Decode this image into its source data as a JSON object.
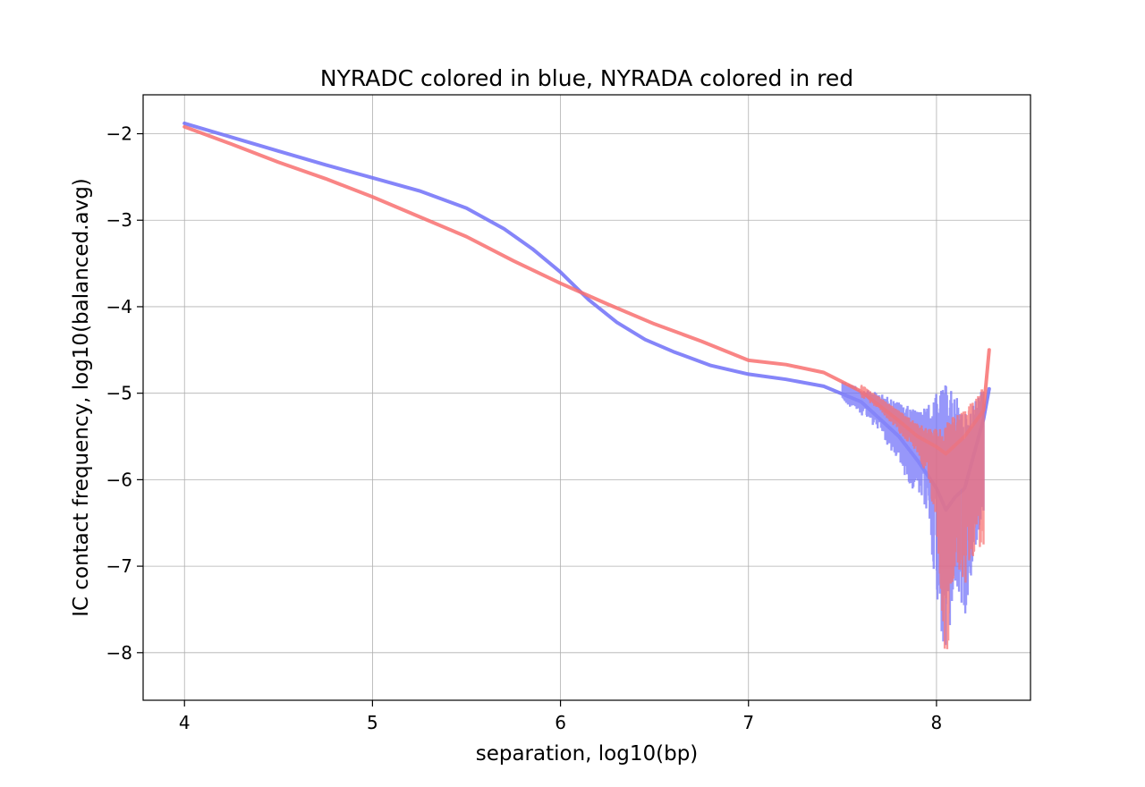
{
  "chart_data": {
    "type": "line",
    "title": "NYRADC colored in blue, NYRADA colored in red",
    "xlabel": "separation, log10(bp)",
    "ylabel": "IC contact frequency, log10(balanced.avg)",
    "xlim": [
      3.78,
      8.5
    ],
    "ylim": [
      -8.55,
      -1.55
    ],
    "x_ticks": [
      4,
      5,
      6,
      7,
      8
    ],
    "y_ticks": [
      -2,
      -3,
      -4,
      -5,
      -6,
      -7,
      -8
    ],
    "x_tick_labels": [
      "4",
      "5",
      "6",
      "7",
      "8"
    ],
    "y_tick_labels": [
      "−2",
      "−3",
      "−4",
      "−5",
      "−6",
      "−7",
      "−8"
    ],
    "grid": true,
    "series": [
      {
        "name": "NYRADC",
        "color": "#7070f8",
        "x": [
          4.0,
          4.25,
          4.5,
          4.75,
          5.0,
          5.25,
          5.5,
          5.7,
          5.85,
          6.0,
          6.15,
          6.3,
          6.45,
          6.6,
          6.8,
          7.0,
          7.2,
          7.4,
          7.6,
          7.7,
          7.8,
          7.9,
          8.0,
          8.05,
          8.1,
          8.15,
          8.2,
          8.25,
          8.28
        ],
        "y": [
          -1.88,
          -2.04,
          -2.2,
          -2.36,
          -2.51,
          -2.66,
          -2.86,
          -3.1,
          -3.33,
          -3.6,
          -3.92,
          -4.18,
          -4.38,
          -4.52,
          -4.68,
          -4.78,
          -4.84,
          -4.92,
          -5.1,
          -5.3,
          -5.5,
          -5.78,
          -6.1,
          -6.35,
          -6.2,
          -6.1,
          -5.7,
          -5.3,
          -4.95
        ],
        "noise_band": {
          "x": [
            7.5,
            7.6,
            7.7,
            7.8,
            7.9,
            7.95,
            8.0,
            8.05,
            8.1,
            8.15,
            8.2,
            8.25
          ],
          "low": [
            -5.1,
            -5.25,
            -5.45,
            -5.85,
            -6.2,
            -6.4,
            -7.35,
            -8.2,
            -7.3,
            -7.6,
            -6.9,
            -6.4
          ],
          "high": [
            -4.85,
            -4.95,
            -5.0,
            -5.1,
            -5.2,
            -5.15,
            -5.0,
            -4.9,
            -5.0,
            -5.25,
            -5.1,
            -4.9
          ]
        }
      },
      {
        "name": "NYRADA",
        "color": "#f87070",
        "x": [
          4.0,
          4.25,
          4.5,
          4.75,
          5.0,
          5.25,
          5.5,
          5.75,
          6.0,
          6.25,
          6.5,
          6.75,
          7.0,
          7.2,
          7.4,
          7.6,
          7.7,
          7.8,
          7.9,
          8.0,
          8.05,
          8.1,
          8.15,
          8.2,
          8.25,
          8.28
        ],
        "y": [
          -1.92,
          -2.12,
          -2.33,
          -2.52,
          -2.73,
          -2.96,
          -3.19,
          -3.47,
          -3.73,
          -3.97,
          -4.2,
          -4.4,
          -4.62,
          -4.67,
          -4.76,
          -4.98,
          -5.15,
          -5.32,
          -5.5,
          -5.62,
          -5.7,
          -5.6,
          -5.5,
          -5.35,
          -5.2,
          -4.5
        ],
        "noise_band": {
          "x": [
            7.6,
            7.7,
            7.8,
            7.9,
            7.95,
            8.0,
            8.05,
            8.1,
            8.15,
            8.2,
            8.25
          ],
          "low": [
            -5.05,
            -5.2,
            -5.45,
            -5.7,
            -6.0,
            -6.5,
            -8.25,
            -7.0,
            -7.3,
            -6.85,
            -6.75
          ],
          "high": [
            -4.9,
            -5.05,
            -5.2,
            -5.35,
            -5.4,
            -5.4,
            -5.35,
            -5.25,
            -5.2,
            -5.05,
            -4.9
          ]
        }
      }
    ]
  }
}
